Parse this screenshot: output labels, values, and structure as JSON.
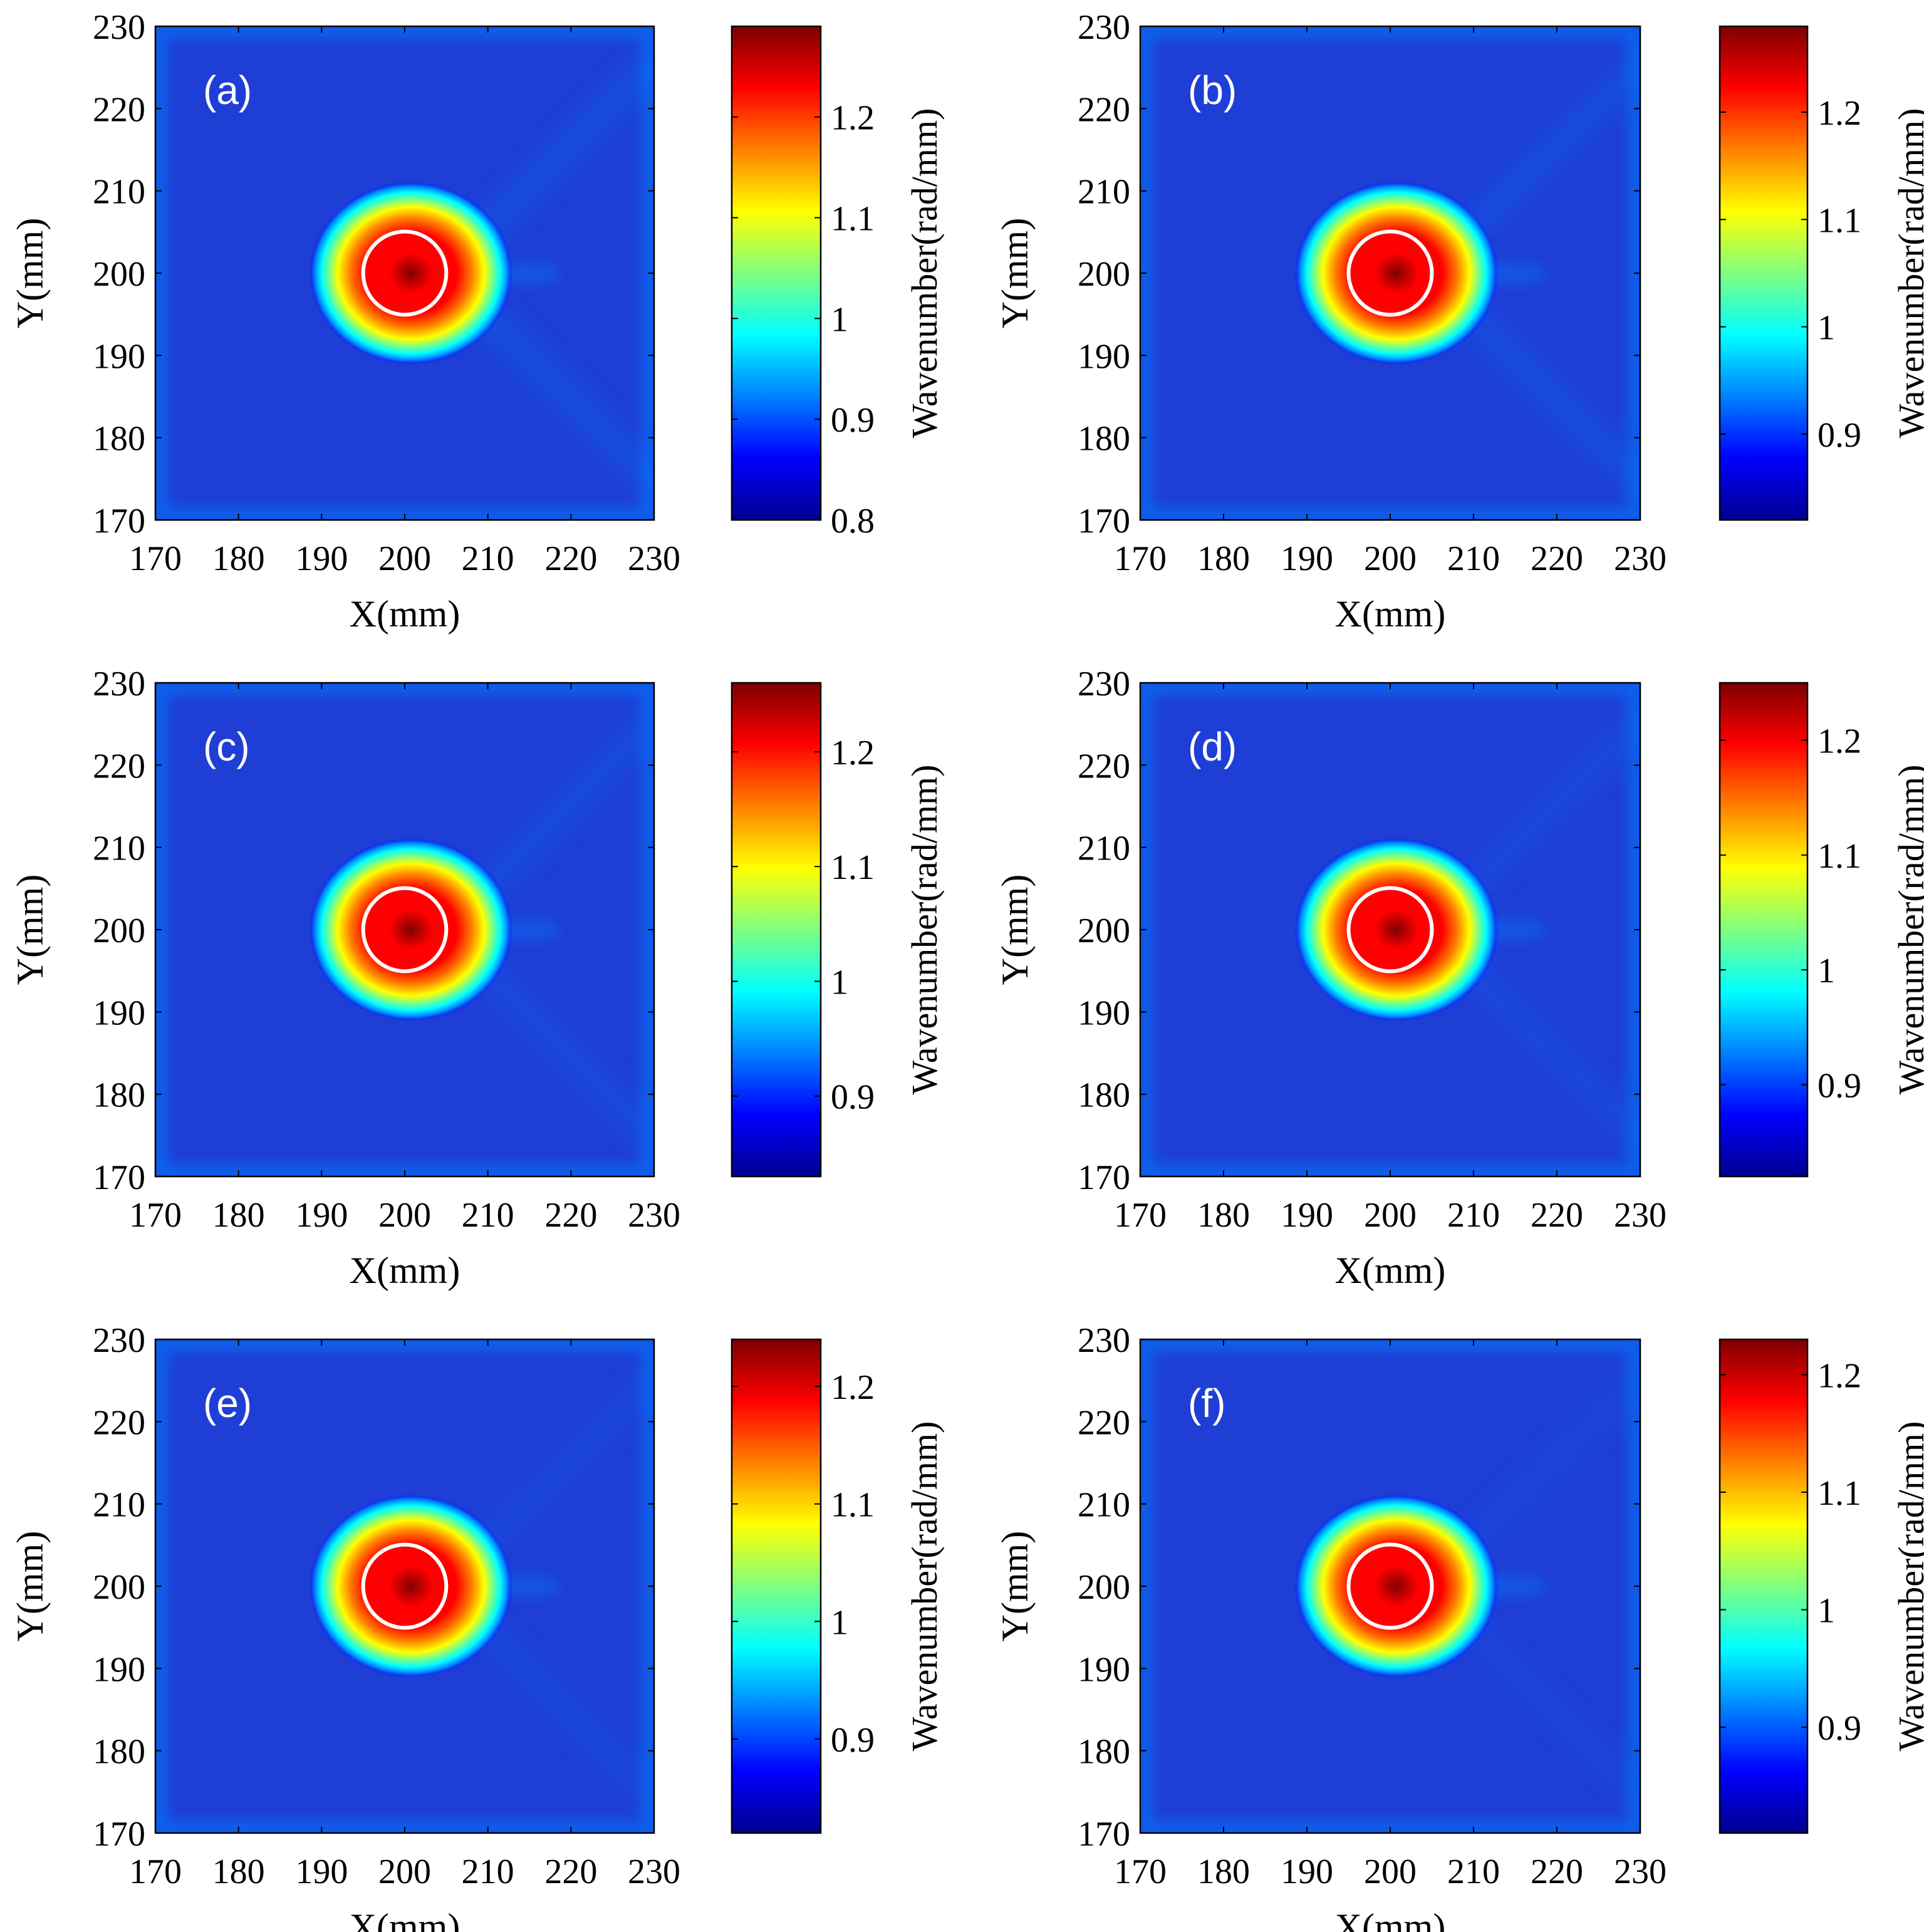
{
  "colors": {
    "colormap": [
      "#00008f",
      "#0000ff",
      "#0080ff",
      "#00ffff",
      "#80ff80",
      "#ffff00",
      "#ff8000",
      "#ff0000",
      "#800000"
    ],
    "background_field": "#1e3ed6",
    "marker_circle": "#ffffff"
  },
  "chart_data": [
    {
      "type": "heatmap",
      "panel_label": "(a)",
      "xlabel": "X(mm)",
      "ylabel": "Y(mm)",
      "xlim": [
        170,
        230
      ],
      "ylim": [
        170,
        230
      ],
      "x_ticks": [
        "170",
        "180",
        "190",
        "200",
        "210",
        "220",
        "230"
      ],
      "y_ticks": [
        "170",
        "180",
        "190",
        "200",
        "210",
        "220",
        "230"
      ],
      "hotspot": {
        "x": 200,
        "y": 200,
        "peak_value": 1.29
      },
      "defect_circle": {
        "x": 200,
        "y": 200,
        "radius": 5
      },
      "colorbar": {
        "label": "Wavenumber(rad/mm)",
        "range": [
          0.8,
          1.29
        ],
        "tick_values": [
          0.8,
          0.9,
          1,
          1.1,
          1.2
        ],
        "tick_labels": [
          "0.8",
          "0.9",
          "1",
          "1.1",
          "1.2"
        ]
      }
    },
    {
      "type": "heatmap",
      "panel_label": "(b)",
      "xlabel": "X(mm)",
      "ylabel": "Y(mm)",
      "xlim": [
        170,
        230
      ],
      "ylim": [
        170,
        230
      ],
      "x_ticks": [
        "170",
        "180",
        "190",
        "200",
        "210",
        "220",
        "230"
      ],
      "y_ticks": [
        "170",
        "180",
        "190",
        "200",
        "210",
        "220",
        "230"
      ],
      "hotspot": {
        "x": 200,
        "y": 200,
        "peak_value": 1.28
      },
      "defect_circle": {
        "x": 200,
        "y": 200,
        "radius": 5
      },
      "colorbar": {
        "label": "Wavenumber(rad/mm)",
        "range": [
          0.82,
          1.28
        ],
        "tick_values": [
          0.9,
          1,
          1.1,
          1.2
        ],
        "tick_labels": [
          "0.9",
          "1",
          "1.1",
          "1.2"
        ]
      }
    },
    {
      "type": "heatmap",
      "panel_label": "(c)",
      "xlabel": "X(mm)",
      "ylabel": "Y(mm)",
      "xlim": [
        170,
        230
      ],
      "ylim": [
        170,
        230
      ],
      "x_ticks": [
        "170",
        "180",
        "190",
        "200",
        "210",
        "220",
        "230"
      ],
      "y_ticks": [
        "170",
        "180",
        "190",
        "200",
        "210",
        "220",
        "230"
      ],
      "hotspot": {
        "x": 200,
        "y": 200,
        "peak_value": 1.26
      },
      "defect_circle": {
        "x": 200,
        "y": 200,
        "radius": 5
      },
      "colorbar": {
        "label": "Wavenumber(rad/mm)",
        "range": [
          0.83,
          1.26
        ],
        "tick_values": [
          0.9,
          1,
          1.1,
          1.2
        ],
        "tick_labels": [
          "0.9",
          "1",
          "1.1",
          "1.2"
        ]
      }
    },
    {
      "type": "heatmap",
      "panel_label": "(d)",
      "xlabel": "X(mm)",
      "ylabel": "Y(mm)",
      "xlim": [
        170,
        230
      ],
      "ylim": [
        170,
        230
      ],
      "x_ticks": [
        "170",
        "180",
        "190",
        "200",
        "210",
        "220",
        "230"
      ],
      "y_ticks": [
        "170",
        "180",
        "190",
        "200",
        "210",
        "220",
        "230"
      ],
      "hotspot": {
        "x": 200,
        "y": 200,
        "peak_value": 1.25
      },
      "defect_circle": {
        "x": 200,
        "y": 200,
        "radius": 5
      },
      "colorbar": {
        "label": "Wavenumber(rad/mm)",
        "range": [
          0.82,
          1.25
        ],
        "tick_values": [
          0.9,
          1,
          1.1,
          1.2
        ],
        "tick_labels": [
          "0.9",
          "1",
          "1.1",
          "1.2"
        ]
      }
    },
    {
      "type": "heatmap",
      "panel_label": "(e)",
      "xlabel": "X(mm)",
      "ylabel": "Y(mm)",
      "xlim": [
        170,
        230
      ],
      "ylim": [
        170,
        230
      ],
      "x_ticks": [
        "170",
        "180",
        "190",
        "200",
        "210",
        "220",
        "230"
      ],
      "y_ticks": [
        "170",
        "180",
        "190",
        "200",
        "210",
        "220",
        "230"
      ],
      "hotspot": {
        "x": 200,
        "y": 200,
        "peak_value": 1.24
      },
      "defect_circle": {
        "x": 200,
        "y": 200,
        "radius": 5
      },
      "colorbar": {
        "label": "Wavenumber(rad/mm)",
        "range": [
          0.82,
          1.24
        ],
        "tick_values": [
          0.9,
          1,
          1.1,
          1.2
        ],
        "tick_labels": [
          "0.9",
          "1",
          "1.1",
          "1.2"
        ]
      }
    },
    {
      "type": "heatmap",
      "panel_label": "(f)",
      "xlabel": "X(mm)",
      "ylabel": "Y(mm)",
      "xlim": [
        170,
        230
      ],
      "ylim": [
        170,
        230
      ],
      "x_ticks": [
        "170",
        "180",
        "190",
        "200",
        "210",
        "220",
        "230"
      ],
      "y_ticks": [
        "170",
        "180",
        "190",
        "200",
        "210",
        "220",
        "230"
      ],
      "hotspot": {
        "x": 200,
        "y": 200,
        "peak_value": 1.23
      },
      "defect_circle": {
        "x": 200,
        "y": 200,
        "radius": 5
      },
      "colorbar": {
        "label": "Wavenumber(rad/mm)",
        "range": [
          0.81,
          1.23
        ],
        "tick_values": [
          0.9,
          1,
          1.1,
          1.2
        ],
        "tick_labels": [
          "0.9",
          "1",
          "1.1",
          "1.2"
        ]
      }
    }
  ]
}
